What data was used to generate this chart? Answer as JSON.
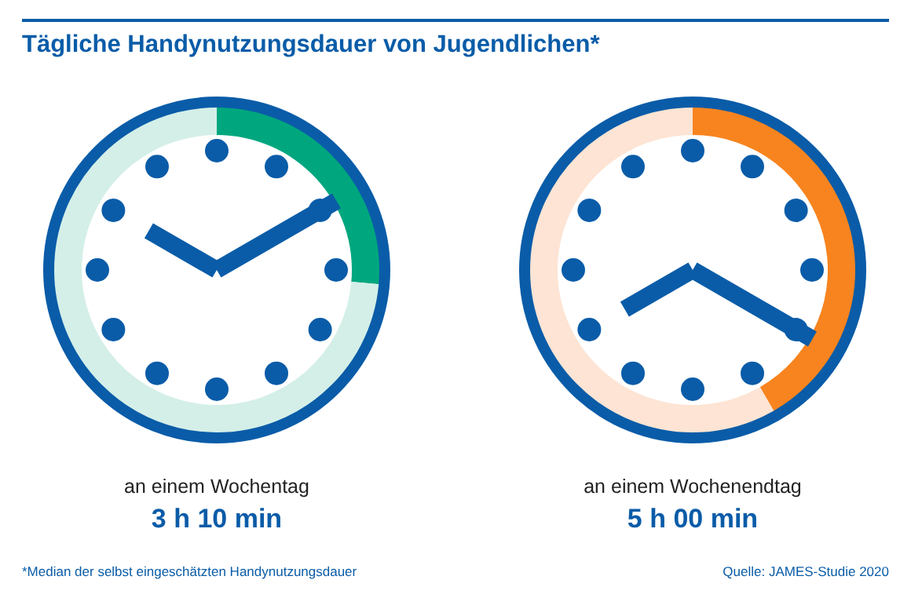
{
  "chart_data": [
    {
      "type": "donut",
      "title": "Tägliche Handynutzungsdauer von Jugendlichen*",
      "xlabel": "an einem Wochentag",
      "categories": [
        null,
        null
      ],
      "values": [
        26.4,
        73.6
      ],
      "colors": [
        "#00a77e",
        "#d4efe8"
      ],
      "annotations": [
        "3 h 10 min",
        "*Median der selbst eingeschätzten Handynutzungsdauer"
      ]
    },
    {
      "type": "donut",
      "xlabel": "an einem Wochenendtag",
      "categories": [
        null,
        null
      ],
      "values": [
        41.7,
        58.3
      ],
      "colors": [
        "#f7841f",
        "#fde4d4"
      ],
      "annotations": [
        "5 h 00 min",
        "Quelle: JAMES-Studie 2020"
      ]
    }
  ]
}
